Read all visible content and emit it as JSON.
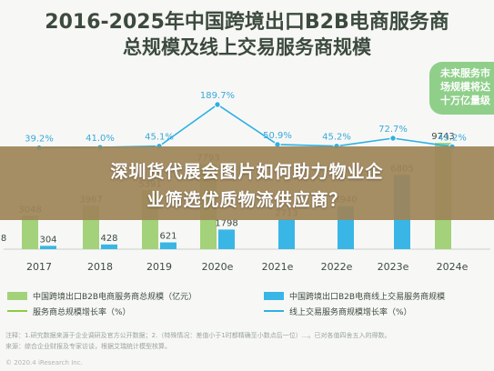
{
  "title_line1": "2016-2025年中国跨境出口B2B电商服务商",
  "title_line2": "总规模及线上交易服务商规模",
  "badge_text": [
    "未来服务市",
    "场规模将达",
    "十万亿量级"
  ],
  "banner": {
    "line1": "深圳货代展会图片如何助力物业企",
    "line2": "业筛选优质物流供应商？"
  },
  "legend": {
    "total_scale": "中国跨境出口B2B电商服务商总规模（亿元）",
    "online_scale": "中国跨境出口B2B电商线上交易服务商规模",
    "total_growth": "服务商总规模增长率（%）",
    "online_growth": "线上交易服务商规模增长率（%）"
  },
  "footnote": {
    "line1": "注释：1.研究数据来源于企业调研及官方公开数据；2.（特殊情况：差值小于1时都精确至小数点后一位）...。已对各值四舍五入的得数。",
    "line2": "来源：综合企业财报及专家访谈，根据艾瑞统计模型核算。"
  },
  "watermark": "© 2020.4 iResearch Inc.",
  "colors": {
    "bar_total": "#a3d27a",
    "bar_online": "#39b6e6",
    "line_total": "#8ccd3f",
    "line_online": "#2fb0e3",
    "label": "#3aa8d8",
    "title": "#3d4a3e"
  },
  "chart_data": {
    "type": "bar",
    "categories": [
      "2017",
      "2018",
      "2019",
      "2020e",
      "2021e",
      "2022e",
      "2023e",
      "2024e"
    ],
    "series": [
      {
        "name": "中国跨境出口B2B电商服务商总规模（亿元）",
        "values": [
          3048,
          3967,
          5391,
          7793,
          null,
          null,
          null,
          9743
        ]
      },
      {
        "name": "中国跨境出口B2B电商线上交易服务商规模",
        "values": [
          304,
          428,
          621,
          1798,
          2713,
          3940,
          6805,
          null
        ]
      }
    ],
    "growth_series": [
      {
        "name": "服务商总规模增长率（%）",
        "values": [
          null,
          null,
          null,
          null,
          null,
          null,
          null,
          null
        ]
      },
      {
        "name": "线上交易服务商规模增长率（%）",
        "values": [
          39.2,
          41.0,
          45.1,
          189.7,
          50.9,
          45.2,
          72.7,
          43.2
        ]
      }
    ],
    "leading_partial_label": "8",
    "ylabel": "",
    "xlabel": "",
    "legend_position": "bottom",
    "grid": false
  }
}
